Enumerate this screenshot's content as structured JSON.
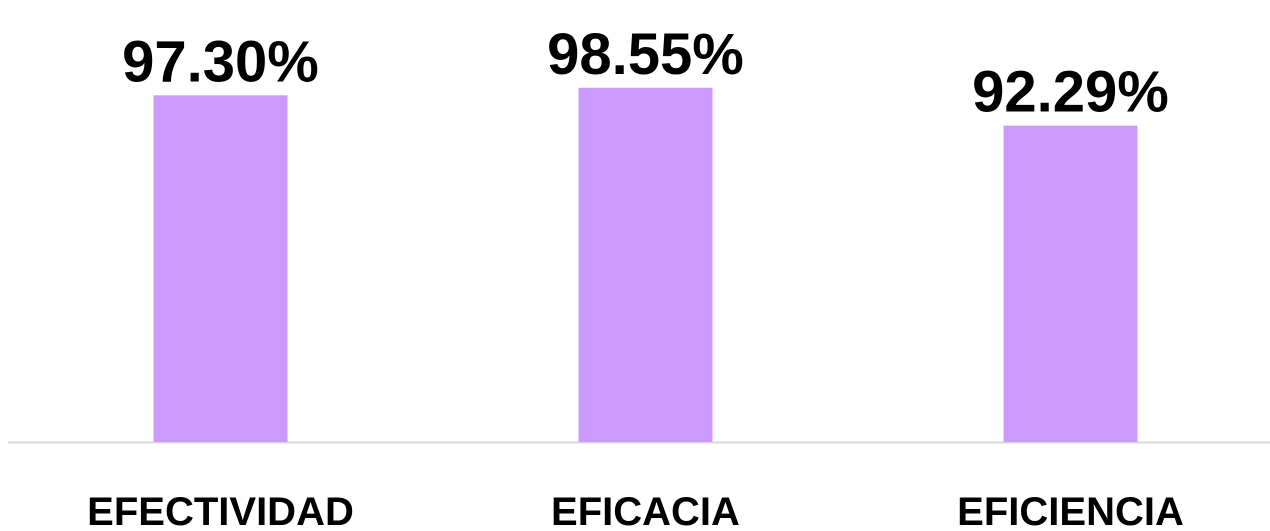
{
  "chart_data": {
    "type": "bar",
    "categories": [
      "EFECTIVIDAD",
      "EFICACIA",
      "EFICIENCIA"
    ],
    "values": [
      97.3,
      98.55,
      92.29
    ],
    "value_labels": [
      "97.30%",
      "98.55%",
      "92.29%"
    ],
    "color": "#cc99ff",
    "ylim": [
      40,
      100
    ]
  }
}
